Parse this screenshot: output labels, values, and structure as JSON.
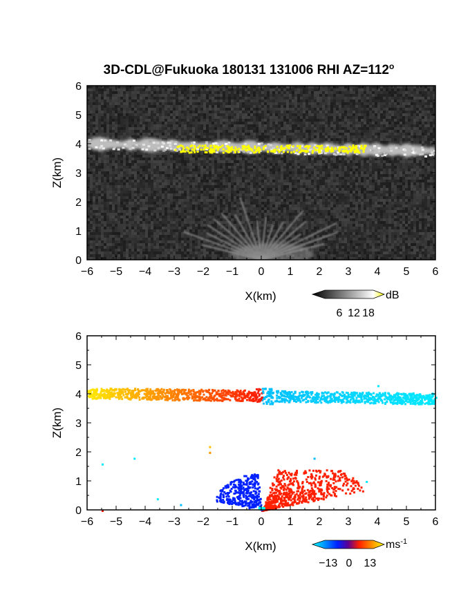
{
  "chart_data": [
    {
      "type": "heatmap",
      "title": "3D-CDL@Fukuoka 180131 131006 RHI AZ=112",
      "title_superscript": "o",
      "xlabel": "X(km)",
      "ylabel": "Z(km)",
      "xlim": [
        -6,
        6
      ],
      "ylim": [
        0,
        6
      ],
      "xticks": [
        "-6",
        "-5",
        "-4",
        "-3",
        "-2",
        "-1",
        "0",
        "1",
        "2",
        "3",
        "4",
        "5",
        "6"
      ],
      "yticks": [
        "0",
        "1",
        "2",
        "3",
        "4",
        "5",
        "6"
      ],
      "colorbar": {
        "unit": "dB",
        "ticks": [
          "6",
          "12",
          "18"
        ],
        "range": [
          0,
          20
        ],
        "colormap": "grayscale"
      },
      "features": [
        {
          "name": "cloud layer",
          "x_range": [
            -6,
            6
          ],
          "z_center_left": 4.0,
          "z_center_right": 3.75,
          "thickness": 0.35
        },
        {
          "name": "strong echo",
          "color": "#ffff00",
          "x_range": [
            -3,
            3.6
          ],
          "z_center": 3.85
        },
        {
          "name": "low-level aerosol fan",
          "x_range": [
            -1.2,
            2.5
          ],
          "z_range": [
            0,
            1.4
          ]
        }
      ],
      "background": "#2b2b2b"
    },
    {
      "type": "heatmap",
      "title": "",
      "xlabel": "X(km)",
      "ylabel": "Z(km)",
      "xlim": [
        -6,
        6
      ],
      "ylim": [
        0,
        6
      ],
      "xticks": [
        "-6",
        "-5",
        "-4",
        "-3",
        "-2",
        "-1",
        "0",
        "1",
        "2",
        "3",
        "4",
        "5",
        "6"
      ],
      "yticks": [
        "0",
        "1",
        "2",
        "3",
        "4",
        "5",
        "6"
      ],
      "colorbar": {
        "unit": "ms",
        "unit_exponent": "-1",
        "ticks": [
          "-13",
          "0",
          "13"
        ],
        "range": [
          -15,
          15
        ],
        "colormap": [
          "#00ffff",
          "#0020ff",
          "#ff2000",
          "#ffff00"
        ]
      },
      "features": [
        {
          "name": "cloud layer velocity",
          "x_range": [
            -6,
            6
          ],
          "z_center": 3.95,
          "velocity_at_left": 14,
          "velocity_near_zero_left": 4,
          "velocity_near_zero_right": -12,
          "velocity_at_right": -14
        },
        {
          "name": "low-level positive",
          "color": "#ff2000",
          "x_range": [
            0,
            3.5
          ],
          "z_range": [
            0,
            1.4
          ]
        },
        {
          "name": "low-level negative",
          "color": "#0020ff",
          "x_range": [
            -1.7,
            0
          ],
          "z_range": [
            0,
            1.3
          ]
        }
      ],
      "background": "#ffffff"
    }
  ]
}
